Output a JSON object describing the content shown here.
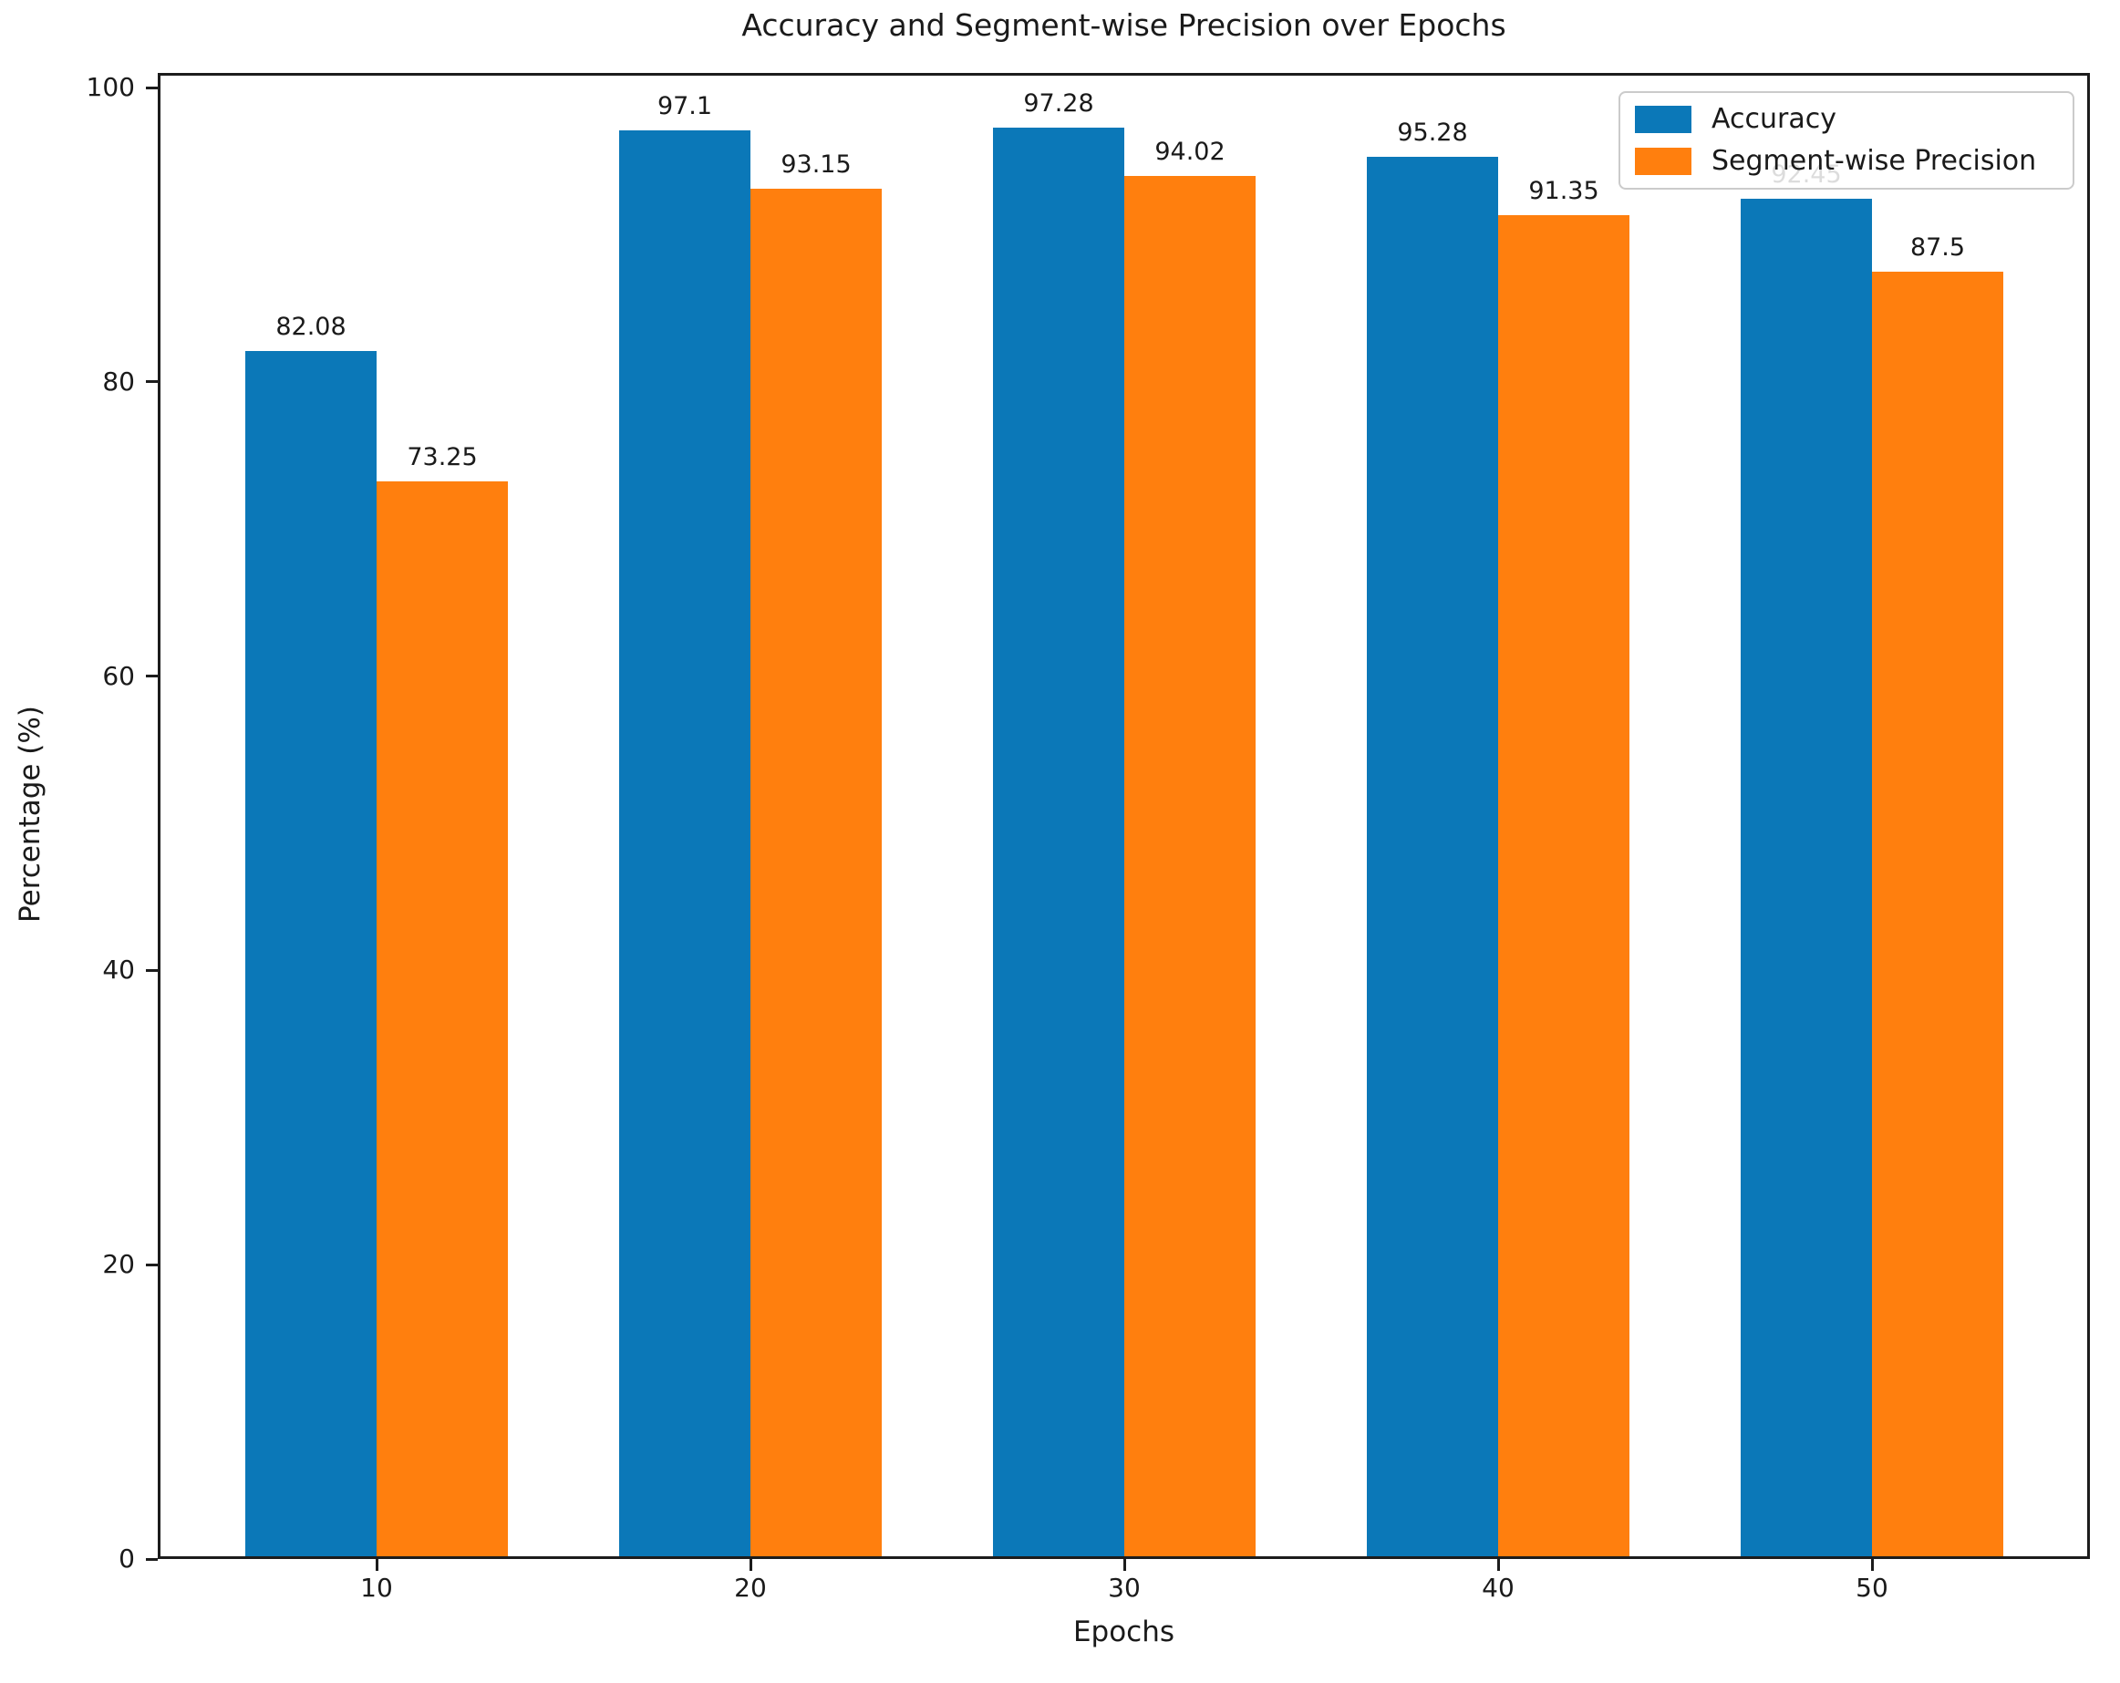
{
  "chart_data": {
    "type": "bar",
    "title": "Accuracy and Segment-wise Precision over Epochs",
    "xlabel": "Epochs",
    "ylabel": "Percentage (%)",
    "categories": [
      "10",
      "20",
      "30",
      "40",
      "50"
    ],
    "series": [
      {
        "name": "Accuracy",
        "color": "#0b78b8",
        "values": [
          82.08,
          97.1,
          97.28,
          95.28,
          92.45
        ]
      },
      {
        "name": "Segment-wise Precision",
        "color": "#ff7f0e",
        "values": [
          73.25,
          93.15,
          94.02,
          91.35,
          87.5
        ]
      }
    ],
    "ylim": [
      0,
      101
    ],
    "yticks": [
      0,
      20,
      40,
      60,
      80,
      100
    ],
    "grid": false,
    "legend_position": "upper right",
    "value_labels_shown": true,
    "axis_color": "#1c1c1c"
  }
}
